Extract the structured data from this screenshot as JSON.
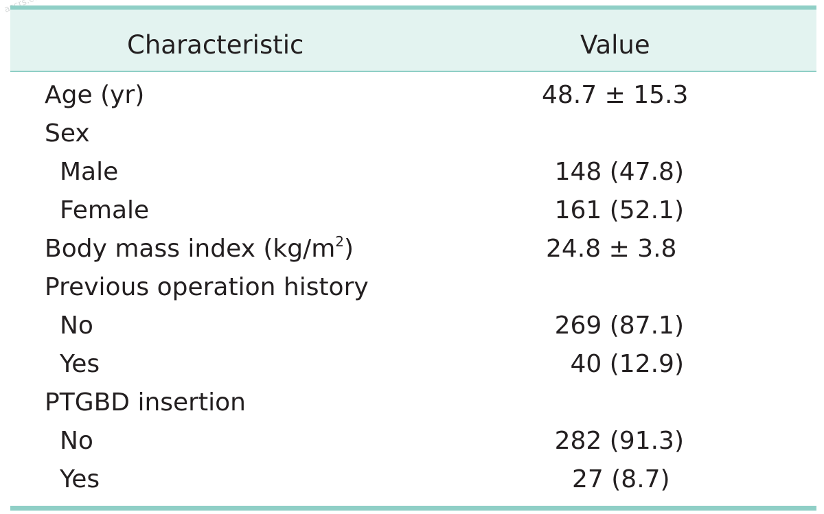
{
  "watermark": "ascrs.com",
  "table": {
    "headers": {
      "characteristic": "Characteristic",
      "value": "Value"
    },
    "rows": [
      {
        "label": "Age (yr)",
        "value": "48.7 ± 15.3"
      },
      {
        "label": "Sex",
        "value": ""
      },
      {
        "label": "Male",
        "value": "148 (47.8)"
      },
      {
        "label": "Female",
        "value": "161 (52.1)"
      },
      {
        "label": "Body mass index (kg/m",
        "label_sup": "2",
        "label_end": ")",
        "value": "24.8 ± 3.8"
      },
      {
        "label": "Previous operation history",
        "value": ""
      },
      {
        "label": "No",
        "value": "269 (87.1)"
      },
      {
        "label": "Yes",
        "value": "40 (12.9)"
      },
      {
        "label": "PTGBD insertion",
        "value": ""
      },
      {
        "label": "No",
        "value": "282 (91.3)"
      },
      {
        "label": "Yes",
        "value": "27 (8.7)"
      }
    ]
  },
  "colors": {
    "rule": "#8fcfc6",
    "header_band": "#e3f3f0",
    "text": "#231f20"
  }
}
